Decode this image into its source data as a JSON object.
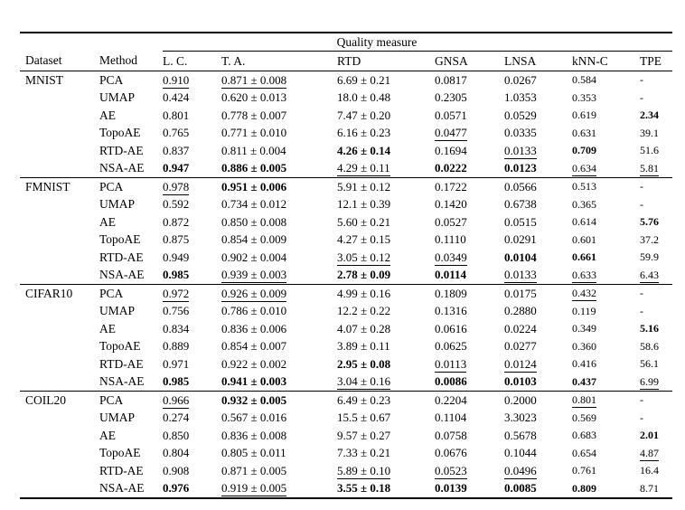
{
  "table": {
    "span_header": "Quality measure",
    "columns": [
      "Dataset",
      "Method",
      "L. C.",
      "T. A.",
      "RTD",
      "GNSA",
      "LNSA",
      "kNN-C",
      "TPE"
    ],
    "sections": [
      {
        "dataset": "MNIST",
        "rows": [
          {
            "method": "PCA",
            "cells": [
              [
                "0.910",
                "u"
              ],
              [
                "0.871 ± 0.008",
                "u"
              ],
              [
                "6.69 ± 0.21",
                ""
              ],
              [
                "0.0817",
                ""
              ],
              [
                "0.0267",
                ""
              ],
              [
                "0.584",
                ""
              ],
              [
                "-",
                ""
              ]
            ]
          },
          {
            "method": "UMAP",
            "cells": [
              [
                "0.424",
                ""
              ],
              [
                "0.620 ± 0.013",
                ""
              ],
              [
                "18.0 ± 0.48",
                ""
              ],
              [
                "0.2305",
                ""
              ],
              [
                "1.0353",
                ""
              ],
              [
                "0.353",
                ""
              ],
              [
                "-",
                ""
              ]
            ]
          },
          {
            "method": "AE",
            "cells": [
              [
                "0.801",
                ""
              ],
              [
                "0.778 ± 0.007",
                ""
              ],
              [
                "7.47 ± 0.20",
                ""
              ],
              [
                "0.0571",
                ""
              ],
              [
                "0.0529",
                ""
              ],
              [
                "0.619",
                ""
              ],
              [
                "2.34",
                "b"
              ]
            ]
          },
          {
            "method": "TopoAE",
            "cells": [
              [
                "0.765",
                ""
              ],
              [
                "0.771 ± 0.010",
                ""
              ],
              [
                "6.16 ± 0.23",
                ""
              ],
              [
                "0.0477",
                "u"
              ],
              [
                "0.0335",
                ""
              ],
              [
                "0.631",
                ""
              ],
              [
                "39.1",
                ""
              ]
            ]
          },
          {
            "method": "RTD-AE",
            "cells": [
              [
                "0.837",
                ""
              ],
              [
                "0.811 ± 0.004",
                ""
              ],
              [
                "4.26 ± 0.14",
                "b"
              ],
              [
                "0.1694",
                ""
              ],
              [
                "0.0133",
                "u"
              ],
              [
                "0.709",
                "b"
              ],
              [
                "51.6",
                ""
              ]
            ]
          },
          {
            "method": "NSA-AE",
            "cells": [
              [
                "0.947",
                "b"
              ],
              [
                "0.886 ± 0.005",
                "b"
              ],
              [
                "4.29 ± 0.11",
                "u"
              ],
              [
                "0.0222",
                "b"
              ],
              [
                "0.0123",
                "b"
              ],
              [
                "0.634",
                "u"
              ],
              [
                "5.81",
                "u"
              ]
            ]
          }
        ]
      },
      {
        "dataset": "FMNIST",
        "rows": [
          {
            "method": "PCA",
            "cells": [
              [
                "0.978",
                "u"
              ],
              [
                "0.951 ± 0.006",
                "b"
              ],
              [
                "5.91 ± 0.12",
                ""
              ],
              [
                "0.1722",
                ""
              ],
              [
                "0.0566",
                ""
              ],
              [
                "0.513",
                ""
              ],
              [
                "-",
                ""
              ]
            ]
          },
          {
            "method": "UMAP",
            "cells": [
              [
                "0.592",
                ""
              ],
              [
                "0.734 ± 0.012",
                ""
              ],
              [
                "12.1 ± 0.39",
                ""
              ],
              [
                "0.1420",
                ""
              ],
              [
                "0.6738",
                ""
              ],
              [
                "0.365",
                ""
              ],
              [
                "-",
                ""
              ]
            ]
          },
          {
            "method": "AE",
            "cells": [
              [
                "0.872",
                ""
              ],
              [
                "0.850 ± 0.008",
                ""
              ],
              [
                "5.60 ± 0.21",
                ""
              ],
              [
                "0.0527",
                ""
              ],
              [
                "0.0515",
                ""
              ],
              [
                "0.614",
                ""
              ],
              [
                "5.76",
                "b"
              ]
            ]
          },
          {
            "method": "TopoAE",
            "cells": [
              [
                "0.875",
                ""
              ],
              [
                "0.854 ± 0.009",
                ""
              ],
              [
                "4.27 ± 0.15",
                ""
              ],
              [
                "0.1110",
                ""
              ],
              [
                "0.0291",
                ""
              ],
              [
                "0.601",
                ""
              ],
              [
                "37.2",
                ""
              ]
            ]
          },
          {
            "method": "RTD-AE",
            "cells": [
              [
                "0.949",
                ""
              ],
              [
                "0.902 ± 0.004",
                ""
              ],
              [
                "3.05 ± 0.12",
                "u"
              ],
              [
                "0.0349",
                "u"
              ],
              [
                "0.0104",
                "b"
              ],
              [
                "0.661",
                "b"
              ],
              [
                "59.9",
                ""
              ]
            ]
          },
          {
            "method": "NSA-AE",
            "cells": [
              [
                "0.985",
                "b"
              ],
              [
                "0.939 ± 0.003",
                "u"
              ],
              [
                "2.78 ± 0.09",
                "b"
              ],
              [
                "0.0114",
                "b"
              ],
              [
                "0.0133",
                "u"
              ],
              [
                "0.633",
                "u"
              ],
              [
                "6.43",
                "u"
              ]
            ]
          }
        ]
      },
      {
        "dataset": "CIFAR10",
        "rows": [
          {
            "method": "PCA",
            "cells": [
              [
                "0.972",
                "u"
              ],
              [
                "0.926 ± 0.009",
                "u"
              ],
              [
                "4.99 ± 0.16",
                ""
              ],
              [
                "0.1809",
                ""
              ],
              [
                "0.0175",
                ""
              ],
              [
                "0.432",
                "u"
              ],
              [
                "-",
                ""
              ]
            ]
          },
          {
            "method": "UMAP",
            "cells": [
              [
                "0.756",
                ""
              ],
              [
                "0.786 ± 0.010",
                ""
              ],
              [
                "12.2 ± 0.22",
                ""
              ],
              [
                "0.1316",
                ""
              ],
              [
                "0.2880",
                ""
              ],
              [
                "0.119",
                ""
              ],
              [
                "-",
                ""
              ]
            ]
          },
          {
            "method": "AE",
            "cells": [
              [
                "0.834",
                ""
              ],
              [
                "0.836 ± 0.006",
                ""
              ],
              [
                "4.07 ± 0.28",
                ""
              ],
              [
                "0.0616",
                ""
              ],
              [
                "0.0224",
                ""
              ],
              [
                "0.349",
                ""
              ],
              [
                "5.16",
                "b"
              ]
            ]
          },
          {
            "method": "TopoAE",
            "cells": [
              [
                "0.889",
                ""
              ],
              [
                "0.854 ± 0.007",
                ""
              ],
              [
                "3.89 ± 0.11",
                ""
              ],
              [
                "0.0625",
                ""
              ],
              [
                "0.0277",
                ""
              ],
              [
                "0.360",
                ""
              ],
              [
                "58.6",
                ""
              ]
            ]
          },
          {
            "method": "RTD-AE",
            "cells": [
              [
                "0.971",
                ""
              ],
              [
                "0.922 ± 0.002",
                ""
              ],
              [
                "2.95 ± 0.08",
                "b"
              ],
              [
                "0.0113",
                "u"
              ],
              [
                "0.0124",
                "u"
              ],
              [
                "0.416",
                ""
              ],
              [
                "56.1",
                ""
              ]
            ]
          },
          {
            "method": "NSA-AE",
            "cells": [
              [
                "0.985",
                "b"
              ],
              [
                "0.941 ± 0.003",
                "b"
              ],
              [
                "3.04 ± 0.16",
                "u"
              ],
              [
                "0.0086",
                "b"
              ],
              [
                "0.0103",
                "b"
              ],
              [
                "0.437",
                "b"
              ],
              [
                "6.99",
                "u"
              ]
            ]
          }
        ]
      },
      {
        "dataset": "COIL20",
        "rows": [
          {
            "method": "PCA",
            "cells": [
              [
                "0.966",
                "u"
              ],
              [
                "0.932 ± 0.005",
                "b"
              ],
              [
                "6.49 ± 0.23",
                ""
              ],
              [
                "0.2204",
                ""
              ],
              [
                "0.2000",
                ""
              ],
              [
                "0.801",
                "u"
              ],
              [
                "-",
                ""
              ]
            ]
          },
          {
            "method": "UMAP",
            "cells": [
              [
                "0.274",
                ""
              ],
              [
                "0.567 ± 0.016",
                ""
              ],
              [
                "15.5 ± 0.67",
                ""
              ],
              [
                "0.1104",
                ""
              ],
              [
                "3.3023",
                ""
              ],
              [
                "0.569",
                ""
              ],
              [
                "-",
                ""
              ]
            ]
          },
          {
            "method": "AE",
            "cells": [
              [
                "0.850",
                ""
              ],
              [
                "0.836 ± 0.008",
                ""
              ],
              [
                "9.57 ± 0.27",
                ""
              ],
              [
                "0.0758",
                ""
              ],
              [
                "0.5678",
                ""
              ],
              [
                "0.683",
                ""
              ],
              [
                "2.01",
                "b"
              ]
            ]
          },
          {
            "method": "TopoAE",
            "cells": [
              [
                "0.804",
                ""
              ],
              [
                "0.805 ± 0.011",
                ""
              ],
              [
                "7.33 ± 0.21",
                ""
              ],
              [
                "0.0676",
                ""
              ],
              [
                "0.1044",
                ""
              ],
              [
                "0.654",
                ""
              ],
              [
                "4.87",
                "u"
              ]
            ]
          },
          {
            "method": "RTD-AE",
            "cells": [
              [
                "0.908",
                ""
              ],
              [
                "0.871 ± 0.005",
                ""
              ],
              [
                "5.89 ± 0.10",
                "u"
              ],
              [
                "0.0523",
                "u"
              ],
              [
                "0.0496",
                "u"
              ],
              [
                "0.761",
                ""
              ],
              [
                "16.4",
                ""
              ]
            ]
          },
          {
            "method": "NSA-AE",
            "cells": [
              [
                "0.976",
                "b"
              ],
              [
                "0.919 ± 0.005",
                "u"
              ],
              [
                "3.55 ± 0.18",
                "b"
              ],
              [
                "0.0139",
                "b"
              ],
              [
                "0.0085",
                "b"
              ],
              [
                "0.809",
                "b"
              ],
              [
                "8.71",
                ""
              ]
            ]
          }
        ]
      }
    ]
  }
}
